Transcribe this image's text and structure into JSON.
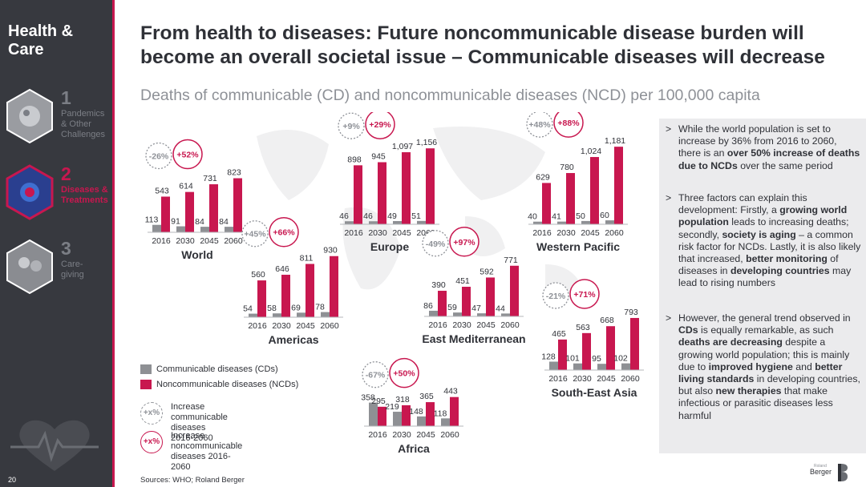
{
  "sidebar": {
    "brand": "Health &\nCare",
    "items": [
      {
        "number": "1",
        "label": "Pandemics\n& Other\nChallenges",
        "active": false
      },
      {
        "number": "2",
        "label": "Diseases &\nTreatments",
        "active": true
      },
      {
        "number": "3",
        "label": "Care-\ngiving",
        "active": false
      }
    ],
    "page_number": "20"
  },
  "header": {
    "title": "From health to diseases: Future noncommunicable disease burden will\nbecome an overall societal issue – Communicable diseases will decrease",
    "subtitle": "Deaths of communicable (CD) and noncommunicable diseases (NCD) per 100,000 capita"
  },
  "colors": {
    "cd": "#8e9094",
    "ncd": "#c8174f",
    "sidebar": "#37393f",
    "notes_bg": "#ebebed"
  },
  "chart_data": [
    {
      "type": "bar",
      "title": "World",
      "categories": [
        "2016",
        "2030",
        "2045",
        "2060"
      ],
      "series": [
        {
          "name": "Communicable diseases (CDs)",
          "values": [
            113,
            91,
            84,
            84
          ]
        },
        {
          "name": "Noncommunicable diseases (NCDs)",
          "values": [
            543,
            614,
            731,
            823
          ]
        }
      ],
      "cd_change": "-26%",
      "ncd_change": "+52%"
    },
    {
      "type": "bar",
      "title": "Europe",
      "categories": [
        "2016",
        "2030",
        "2045",
        "2060"
      ],
      "series": [
        {
          "name": "Communicable diseases (CDs)",
          "values": [
            46,
            46,
            49,
            51
          ]
        },
        {
          "name": "Noncommunicable diseases (NCDs)",
          "values": [
            898,
            945,
            1097,
            1156
          ]
        }
      ],
      "cd_change": "+9%",
      "ncd_change": "+29%"
    },
    {
      "type": "bar",
      "title": "Western Pacific",
      "categories": [
        "2016",
        "2030",
        "2045",
        "2060"
      ],
      "series": [
        {
          "name": "Communicable diseases (CDs)",
          "values": [
            40,
            41,
            50,
            60
          ]
        },
        {
          "name": "Noncommunicable diseases (NCDs)",
          "values": [
            629,
            780,
            1024,
            1181
          ]
        }
      ],
      "cd_change": "+48%",
      "ncd_change": "+88%"
    },
    {
      "type": "bar",
      "title": "Americas",
      "categories": [
        "2016",
        "2030",
        "2045",
        "2060"
      ],
      "series": [
        {
          "name": "Communicable diseases (CDs)",
          "values": [
            54,
            58,
            69,
            78
          ]
        },
        {
          "name": "Noncommunicable diseases (NCDs)",
          "values": [
            560,
            646,
            811,
            930
          ]
        }
      ],
      "cd_change": "+45%",
      "ncd_change": "+66%"
    },
    {
      "type": "bar",
      "title": "East Mediterranean",
      "categories": [
        "2016",
        "2030",
        "2045",
        "2060"
      ],
      "series": [
        {
          "name": "Communicable diseases (CDs)",
          "values": [
            86,
            59,
            47,
            44
          ]
        },
        {
          "name": "Noncommunicable diseases (NCDs)",
          "values": [
            390,
            451,
            592,
            771
          ]
        }
      ],
      "cd_change": "-49%",
      "ncd_change": "+97%"
    },
    {
      "type": "bar",
      "title": "South-East Asia",
      "categories": [
        "2016",
        "2030",
        "2045",
        "2060"
      ],
      "series": [
        {
          "name": "Communicable diseases (CDs)",
          "values": [
            128,
            101,
            95,
            102
          ]
        },
        {
          "name": "Noncommunicable diseases (NCDs)",
          "values": [
            465,
            563,
            668,
            793
          ]
        }
      ],
      "cd_change": "-21%",
      "ncd_change": "+71%"
    },
    {
      "type": "bar",
      "title": "Africa",
      "categories": [
        "2016",
        "2030",
        "2045",
        "2060"
      ],
      "series": [
        {
          "name": "Communicable diseases (CDs)",
          "values": [
            358,
            219,
            148,
            118
          ]
        },
        {
          "name": "Noncommunicable diseases (NCDs)",
          "values": [
            295,
            318,
            365,
            443
          ]
        }
      ],
      "cd_change": "-67%",
      "ncd_change": "+50%"
    }
  ],
  "legend": {
    "cd_label": "Communicable diseases (CDs)",
    "ncd_label": "Noncommunicable diseases (NCDs)",
    "bubble_text": "+x%",
    "cd_increase": "Increase communicable\ndiseases 2016-2060",
    "ncd_increase": "Increase noncommunicable\ndiseases 2016-2060"
  },
  "notes": [
    {
      "bullet": ">",
      "parts": [
        {
          "text": "While the world population is set to increase by 36% from 2016 to 2060, there is an ",
          "bold": false
        },
        {
          "text": "over 50% increase of deaths due to NCDs",
          "bold": true
        },
        {
          "text": " over the same period",
          "bold": false
        }
      ]
    },
    {
      "bullet": ">",
      "parts": [
        {
          "text": "Three factors can explain this development: Firstly, a ",
          "bold": false
        },
        {
          "text": "growing world population",
          "bold": true
        },
        {
          "text": " leads to increasing deaths; secondly, ",
          "bold": false
        },
        {
          "text": "society is aging",
          "bold": true
        },
        {
          "text": " – a common risk factor for NCDs. Lastly, it is also likely that increased, ",
          "bold": false
        },
        {
          "text": "better monitoring",
          "bold": true
        },
        {
          "text": " of diseases in ",
          "bold": false
        },
        {
          "text": "developing countries",
          "bold": true
        },
        {
          "text": " may lead to rising numbers",
          "bold": false
        }
      ]
    },
    {
      "bullet": ">",
      "parts": [
        {
          "text": "However, the general trend observed in ",
          "bold": false
        },
        {
          "text": "CDs",
          "bold": true
        },
        {
          "text": " is equally remarkable, as such ",
          "bold": false
        },
        {
          "text": "deaths are decreasing",
          "bold": true
        },
        {
          "text": " despite a growing world population; this is mainly due to ",
          "bold": false
        },
        {
          "text": "improved hygiene",
          "bold": true
        },
        {
          "text": " and ",
          "bold": false
        },
        {
          "text": "better living standards",
          "bold": true
        },
        {
          "text": " in developing countries, but also ",
          "bold": false
        },
        {
          "text": "new therapies",
          "bold": true
        },
        {
          "text": " that make infectious or parasitic diseases less harmful",
          "bold": false
        }
      ]
    }
  ],
  "footer": {
    "sources": "Sources: WHO; Roland Berger",
    "logo_small": "Roland",
    "logo_name": "Berger"
  }
}
